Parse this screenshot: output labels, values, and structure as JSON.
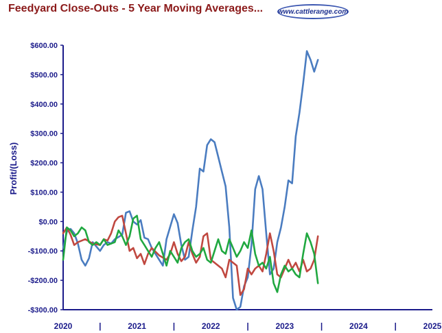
{
  "header": {
    "title": "Feedyard Close-Outs - 5 Year Moving Averages...",
    "logo_text": "www.cattlerange.com"
  },
  "chart_data": {
    "type": "line",
    "title": "Feedyard Close-Outs - 5 Year Moving Averages...",
    "ylabel": "Profit/(Loss)",
    "xlabel": "",
    "ylim": [
      -300,
      600
    ],
    "xlim": [
      2020,
      2025
    ],
    "y_ticks": [
      600,
      500,
      400,
      300,
      200,
      100,
      0,
      -100,
      -200,
      -300
    ],
    "y_tick_labels": [
      "$600.00",
      "$500.00",
      "$400.00",
      "$300.00",
      "$200.00",
      "$100.00",
      "$0.00",
      "-$100.00",
      "-$200.00",
      "-$300.00"
    ],
    "x_tick_labels": [
      "2020",
      "|",
      "2021",
      "|",
      "2022",
      "|",
      "2023",
      "|",
      "2024",
      "|",
      "2025"
    ],
    "x_tick_values": [
      2020,
      2020.5,
      2021,
      2021.5,
      2022,
      2022.5,
      2023,
      2023.5,
      2024,
      2024.5,
      2025
    ],
    "grid": false,
    "series": [
      {
        "color": "#4a7cc0",
        "points": [
          [
            2020.0,
            -90
          ],
          [
            2020.05,
            -35
          ],
          [
            2020.1,
            -25
          ],
          [
            2020.15,
            -40
          ],
          [
            2020.2,
            -75
          ],
          [
            2020.25,
            -130
          ],
          [
            2020.3,
            -150
          ],
          [
            2020.35,
            -125
          ],
          [
            2020.4,
            -70
          ],
          [
            2020.45,
            -85
          ],
          [
            2020.5,
            -100
          ],
          [
            2020.55,
            -80
          ],
          [
            2020.6,
            -70
          ],
          [
            2020.65,
            -75
          ],
          [
            2020.7,
            -60
          ],
          [
            2020.8,
            -45
          ],
          [
            2020.85,
            30
          ],
          [
            2020.9,
            35
          ],
          [
            2020.95,
            0
          ],
          [
            2021.0,
            -10
          ],
          [
            2021.05,
            5
          ],
          [
            2021.1,
            -55
          ],
          [
            2021.15,
            -60
          ],
          [
            2021.2,
            -90
          ],
          [
            2021.3,
            -130
          ],
          [
            2021.35,
            -150
          ],
          [
            2021.4,
            -60
          ],
          [
            2021.5,
            25
          ],
          [
            2021.55,
            -5
          ],
          [
            2021.6,
            -80
          ],
          [
            2021.65,
            -130
          ],
          [
            2021.7,
            -120
          ],
          [
            2021.75,
            -30
          ],
          [
            2021.8,
            50
          ],
          [
            2021.85,
            180
          ],
          [
            2021.9,
            170
          ],
          [
            2021.95,
            260
          ],
          [
            2022.0,
            280
          ],
          [
            2022.05,
            270
          ],
          [
            2022.1,
            220
          ],
          [
            2022.15,
            170
          ],
          [
            2022.2,
            120
          ],
          [
            2022.25,
            -20
          ],
          [
            2022.3,
            -260
          ],
          [
            2022.35,
            -300
          ],
          [
            2022.4,
            -290
          ],
          [
            2022.45,
            -220
          ],
          [
            2022.5,
            -190
          ],
          [
            2022.55,
            -80
          ],
          [
            2022.6,
            110
          ],
          [
            2022.65,
            155
          ],
          [
            2022.7,
            110
          ],
          [
            2022.75,
            -40
          ],
          [
            2022.8,
            -180
          ],
          [
            2022.85,
            -160
          ],
          [
            2022.9,
            -70
          ],
          [
            2022.95,
            -20
          ],
          [
            2023.0,
            50
          ],
          [
            2023.05,
            140
          ],
          [
            2023.1,
            130
          ],
          [
            2023.15,
            290
          ],
          [
            2023.2,
            370
          ],
          [
            2023.25,
            470
          ],
          [
            2023.3,
            580
          ],
          [
            2023.35,
            550
          ],
          [
            2023.4,
            510
          ],
          [
            2023.45,
            550
          ]
        ]
      },
      {
        "color": "#c04840",
        "points": [
          [
            2020.0,
            -40
          ],
          [
            2020.05,
            -20
          ],
          [
            2020.1,
            -45
          ],
          [
            2020.15,
            -80
          ],
          [
            2020.2,
            -70
          ],
          [
            2020.3,
            -60
          ],
          [
            2020.4,
            -75
          ],
          [
            2020.5,
            -80
          ],
          [
            2020.55,
            -60
          ],
          [
            2020.6,
            -65
          ],
          [
            2020.65,
            -40
          ],
          [
            2020.7,
            0
          ],
          [
            2020.75,
            15
          ],
          [
            2020.8,
            20
          ],
          [
            2020.85,
            -40
          ],
          [
            2020.9,
            -100
          ],
          [
            2020.95,
            -90
          ],
          [
            2021.0,
            -125
          ],
          [
            2021.05,
            -110
          ],
          [
            2021.1,
            -145
          ],
          [
            2021.15,
            -110
          ],
          [
            2021.2,
            -90
          ],
          [
            2021.3,
            -115
          ],
          [
            2021.4,
            -130
          ],
          [
            2021.45,
            -110
          ],
          [
            2021.5,
            -70
          ],
          [
            2021.55,
            -110
          ],
          [
            2021.6,
            -135
          ],
          [
            2021.65,
            -120
          ],
          [
            2021.7,
            -70
          ],
          [
            2021.75,
            -110
          ],
          [
            2021.8,
            -140
          ],
          [
            2021.85,
            -120
          ],
          [
            2021.9,
            -50
          ],
          [
            2021.95,
            -40
          ],
          [
            2022.0,
            -130
          ],
          [
            2022.05,
            -140
          ],
          [
            2022.1,
            -150
          ],
          [
            2022.15,
            -160
          ],
          [
            2022.2,
            -190
          ],
          [
            2022.25,
            -130
          ],
          [
            2022.3,
            -140
          ],
          [
            2022.35,
            -150
          ],
          [
            2022.4,
            -250
          ],
          [
            2022.45,
            -230
          ],
          [
            2022.5,
            -160
          ],
          [
            2022.55,
            -180
          ],
          [
            2022.6,
            -160
          ],
          [
            2022.65,
            -150
          ],
          [
            2022.7,
            -170
          ],
          [
            2022.75,
            -110
          ],
          [
            2022.8,
            -40
          ],
          [
            2022.85,
            -100
          ],
          [
            2022.9,
            -180
          ],
          [
            2022.95,
            -190
          ],
          [
            2023.0,
            -160
          ],
          [
            2023.05,
            -130
          ],
          [
            2023.1,
            -160
          ],
          [
            2023.15,
            -140
          ],
          [
            2023.2,
            -170
          ],
          [
            2023.25,
            -130
          ],
          [
            2023.3,
            -170
          ],
          [
            2023.35,
            -160
          ],
          [
            2023.4,
            -130
          ],
          [
            2023.45,
            -50
          ]
        ]
      },
      {
        "color": "#20a840",
        "points": [
          [
            2020.0,
            -130
          ],
          [
            2020.05,
            -20
          ],
          [
            2020.1,
            -30
          ],
          [
            2020.15,
            -50
          ],
          [
            2020.2,
            -40
          ],
          [
            2020.25,
            -20
          ],
          [
            2020.3,
            -30
          ],
          [
            2020.35,
            -70
          ],
          [
            2020.4,
            -80
          ],
          [
            2020.45,
            -70
          ],
          [
            2020.5,
            -80
          ],
          [
            2020.55,
            -60
          ],
          [
            2020.6,
            -80
          ],
          [
            2020.7,
            -70
          ],
          [
            2020.75,
            -30
          ],
          [
            2020.8,
            -50
          ],
          [
            2020.85,
            -80
          ],
          [
            2020.9,
            -50
          ],
          [
            2020.95,
            10
          ],
          [
            2021.0,
            20
          ],
          [
            2021.05,
            -60
          ],
          [
            2021.1,
            -80
          ],
          [
            2021.15,
            -100
          ],
          [
            2021.2,
            -120
          ],
          [
            2021.25,
            -90
          ],
          [
            2021.3,
            -70
          ],
          [
            2021.35,
            -110
          ],
          [
            2021.4,
            -150
          ],
          [
            2021.45,
            -100
          ],
          [
            2021.5,
            -120
          ],
          [
            2021.55,
            -140
          ],
          [
            2021.6,
            -90
          ],
          [
            2021.65,
            -70
          ],
          [
            2021.7,
            -60
          ],
          [
            2021.75,
            -100
          ],
          [
            2021.8,
            -120
          ],
          [
            2021.85,
            -110
          ],
          [
            2021.9,
            -90
          ],
          [
            2021.95,
            -130
          ],
          [
            2022.0,
            -140
          ],
          [
            2022.05,
            -100
          ],
          [
            2022.1,
            -60
          ],
          [
            2022.15,
            -100
          ],
          [
            2022.2,
            -110
          ],
          [
            2022.25,
            -60
          ],
          [
            2022.3,
            -90
          ],
          [
            2022.35,
            -120
          ],
          [
            2022.4,
            -100
          ],
          [
            2022.45,
            -70
          ],
          [
            2022.5,
            -90
          ],
          [
            2022.55,
            -30
          ],
          [
            2022.6,
            -110
          ],
          [
            2022.65,
            -150
          ],
          [
            2022.7,
            -140
          ],
          [
            2022.75,
            -160
          ],
          [
            2022.8,
            -120
          ],
          [
            2022.85,
            -210
          ],
          [
            2022.9,
            -240
          ],
          [
            2022.95,
            -180
          ],
          [
            2023.0,
            -150
          ],
          [
            2023.05,
            -170
          ],
          [
            2023.1,
            -160
          ],
          [
            2023.15,
            -180
          ],
          [
            2023.2,
            -190
          ],
          [
            2023.25,
            -110
          ],
          [
            2023.3,
            -40
          ],
          [
            2023.35,
            -70
          ],
          [
            2023.4,
            -110
          ],
          [
            2023.45,
            -210
          ]
        ]
      }
    ]
  }
}
